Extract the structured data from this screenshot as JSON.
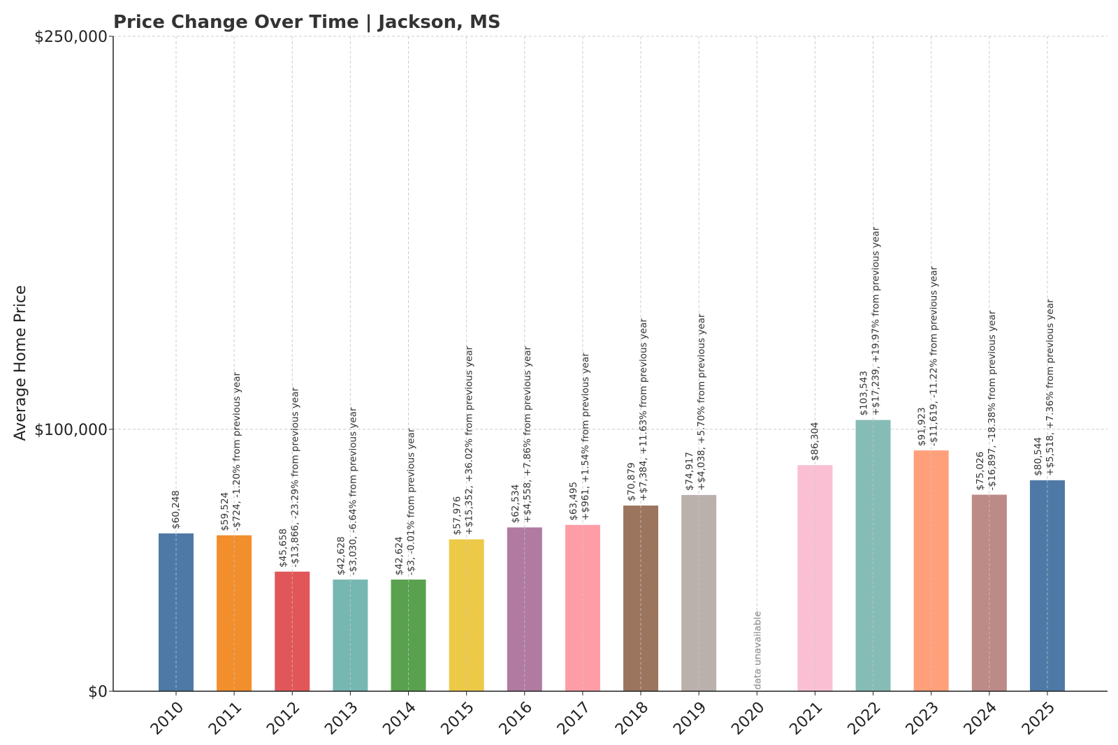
{
  "chart_data": {
    "type": "bar",
    "title": "Price Change Over Time | Jackson, MS",
    "xlabel": "",
    "ylabel": "Average Home Price",
    "ylim": [
      0,
      250000
    ],
    "yticks": [
      0,
      100000,
      250000
    ],
    "ytick_labels": [
      "$0",
      "$100,000",
      "$250,000"
    ],
    "grid": true,
    "categories": [
      "2010",
      "2011",
      "2012",
      "2013",
      "2014",
      "2015",
      "2016",
      "2017",
      "2018",
      "2019",
      "2020",
      "2021",
      "2022",
      "2023",
      "2024",
      "2025"
    ],
    "values": [
      60248,
      59524,
      45658,
      42628,
      42624,
      57976,
      62534,
      63495,
      70879,
      74917,
      null,
      86304,
      103543,
      91923,
      75026,
      80544
    ],
    "bar_labels": [
      [
        "$60,248"
      ],
      [
        "$59,524",
        "-$724, -1.20% from previous year"
      ],
      [
        "$45,658",
        "-$13,866, -23.29% from previous year"
      ],
      [
        "$42,628",
        "-$3,030, -6.64% from previous year"
      ],
      [
        "$42,624",
        "-$3, -0.01% from previous year"
      ],
      [
        "$57,976",
        "+$15,352, +36.02% from previous year"
      ],
      [
        "$62,534",
        "+$4,558, +7.86% from previous year"
      ],
      [
        "$63,495",
        "+$961, +1.54% from previous year"
      ],
      [
        "$70,879",
        "+$7,384, +11.63% from previous year"
      ],
      [
        "$74,917",
        "+$4,038, +5.70% from previous year"
      ],
      [
        "data unavailable"
      ],
      [
        "$86,304"
      ],
      [
        "$103,543",
        "+$17,239, +19.97% from previous year"
      ],
      [
        "$91,923",
        "-$11,619, -11.22% from previous year"
      ],
      [
        "$75,026",
        "-$16,897, -18.38% from previous year"
      ],
      [
        "$80,544",
        "+$5,518, +7.36% from previous year"
      ]
    ],
    "colors": [
      "#4e79a7",
      "#f28e2b",
      "#e15759",
      "#76b7b2",
      "#59a14f",
      "#edc948",
      "#b07aa1",
      "#ff9da7",
      "#9c755f",
      "#bab0ac",
      "#cccccc",
      "#fabfd2",
      "#86bcb6",
      "#ffa07a",
      "#bc8a87",
      "#4e79a7"
    ]
  }
}
